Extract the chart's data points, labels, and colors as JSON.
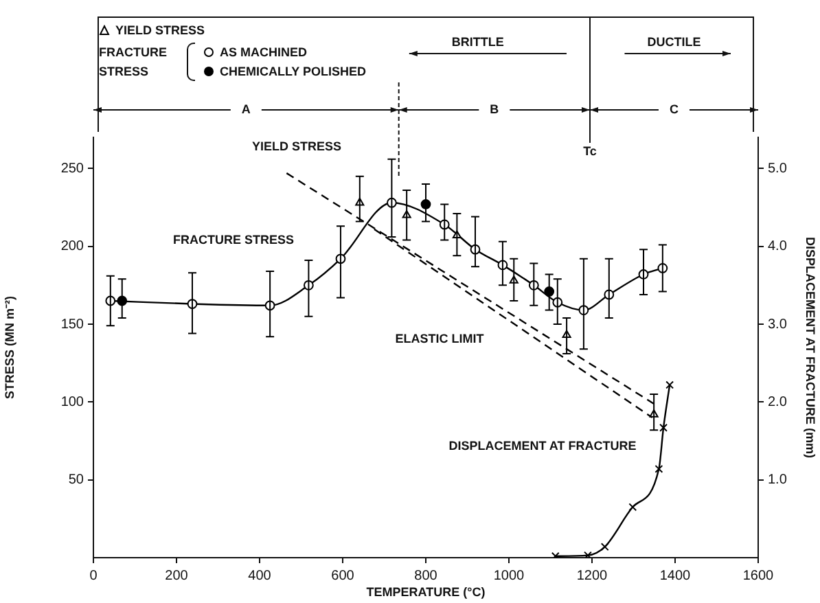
{
  "chart_data": {
    "type": "line",
    "xlabel": "TEMPERATURE (°C)",
    "ylabel": "STRESS (MN m⁻²)",
    "y2label": "DISPLACEMENT AT FRACTURE (mm)",
    "legend_title": "FRACTURE STRESS",
    "legend": "top left",
    "xlim": [
      0,
      1600
    ],
    "xticks": [
      0,
      200,
      400,
      600,
      800,
      1000,
      1200,
      1400,
      1600
    ],
    "ylim": [
      0,
      270
    ],
    "yticks": [
      50,
      100,
      150,
      200,
      250
    ],
    "y2lim": [
      0,
      5.4
    ],
    "y2ticks": [
      {
        "value": 1,
        "label": "1.0"
      },
      {
        "value": 2,
        "label": "2.0"
      },
      {
        "value": 3,
        "label": "3.0"
      },
      {
        "value": 4,
        "label": "4.0"
      },
      {
        "value": 5,
        "label": "5.0"
      }
    ],
    "grid": false,
    "series": [
      {
        "name": "YIELD STRESS",
        "type": "scatter",
        "marker": "triangle",
        "color": "#000000",
        "x": [
          641,
          754,
          875,
          1012,
          1139,
          1349
        ],
        "values": [
          228,
          220,
          207,
          178,
          143,
          92
        ],
        "errors": [
          [
            216,
            245
          ],
          [
            204,
            236
          ],
          [
            194,
            221
          ],
          [
            165,
            192
          ],
          [
            131,
            154
          ],
          [
            82,
            105
          ]
        ]
      },
      {
        "name": "AS MACHINED",
        "type": "line",
        "marker": "circle",
        "line_style": "solid",
        "color": "#000000",
        "x": [
          41,
          238,
          425,
          518,
          595,
          718,
          845,
          919,
          985,
          1060,
          1117,
          1180,
          1241,
          1324,
          1370
        ],
        "values": [
          165,
          163,
          162,
          175,
          192,
          228,
          214,
          198,
          188,
          175,
          164,
          159,
          169,
          182,
          186
        ],
        "errors": [
          [
            149,
            181
          ],
          [
            144,
            183
          ],
          [
            142,
            184
          ],
          [
            155,
            191
          ],
          [
            167,
            213
          ],
          [
            206,
            256
          ],
          [
            204,
            227
          ],
          [
            187,
            219
          ],
          [
            175,
            203
          ],
          [
            162,
            189
          ],
          [
            150,
            179
          ],
          [
            134,
            192
          ],
          [
            154,
            192
          ],
          [
            169,
            198
          ],
          [
            171,
            201
          ]
        ]
      },
      {
        "name": "CHEMICALLY POLISHED",
        "type": "scatter",
        "marker": "circle",
        "color": "#000000",
        "x": [
          69,
          800,
          1097
        ],
        "values": [
          165,
          227,
          171
        ],
        "errors": [
          [
            154,
            179
          ],
          [
            216,
            240
          ],
          [
            159,
            182
          ]
        ]
      },
      {
        "type": "line",
        "marker": "none",
        "line_style": "dashed",
        "color": "#000000",
        "x": [
          465,
          1360
        ],
        "values": [
          247,
          97
        ]
      },
      {
        "type": "line",
        "marker": "none",
        "line_style": "dashed",
        "color": "#000000",
        "x": [
          676,
          1345
        ],
        "values": [
          211,
          90
        ]
      },
      {
        "type": "line",
        "axis": "y2",
        "marker": "cross",
        "line_style": "solid",
        "color": "#000000",
        "x": [
          1112,
          1190,
          1231,
          1298,
          1361,
          1372,
          1387
        ],
        "values": [
          0.02,
          0.03,
          0.14,
          0.65,
          1.14,
          1.67,
          2.22
        ]
      }
    ],
    "ref_lines": [
      {
        "axis": "x",
        "value": 735,
        "line_style": "dotted"
      },
      {
        "axis": "x",
        "value": 1195,
        "label": "Tc",
        "line_style": "solid"
      }
    ],
    "annotations": [
      "BRITTLE",
      "DUCTILE",
      "A",
      "B",
      "C",
      "YIELD STRESS",
      "FRACTURE STRESS",
      "ELASTIC LIMIT",
      "DISPLACEMENT AT FRACTURE"
    ]
  }
}
